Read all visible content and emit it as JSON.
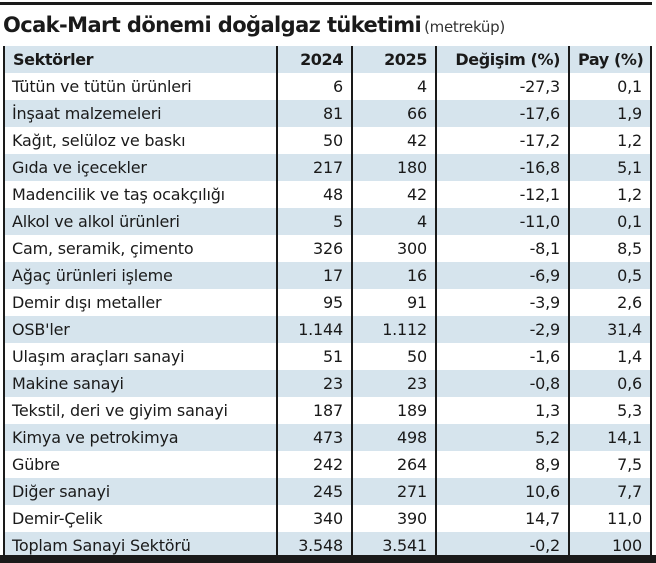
{
  "title": {
    "main": "Ocak-Mart dönemi doğalgaz tüketimi",
    "unit": "(metreküp)"
  },
  "colors": {
    "header_bg": "#d6e4ed",
    "stripe_bg": "#d6e4ed",
    "rule": "#1a1a1a",
    "text": "#1a1a1a"
  },
  "table": {
    "headers": [
      "Sektörler",
      "2024",
      "2025",
      "Değişim (%)",
      "Pay (%)"
    ],
    "rows": [
      [
        "Tütün ve tütün ürünleri",
        "6",
        "4",
        "-27,3",
        "0,1"
      ],
      [
        "İnşaat malzemeleri",
        "81",
        "66",
        "-17,6",
        "1,9"
      ],
      [
        "Kağıt, selüloz ve baskı",
        "50",
        "42",
        "-17,2",
        "1,2"
      ],
      [
        "Gıda ve içecekler",
        "217",
        "180",
        "-16,8",
        "5,1"
      ],
      [
        "Madencilik ve taş ocakçılığı",
        "48",
        "42",
        "-12,1",
        "1,2"
      ],
      [
        "Alkol ve alkol ürünleri",
        "5",
        "4",
        "-11,0",
        "0,1"
      ],
      [
        "Cam, seramik, çimento",
        "326",
        "300",
        "-8,1",
        "8,5"
      ],
      [
        "Ağaç ürünleri işleme",
        "17",
        "16",
        "-6,9",
        "0,5"
      ],
      [
        "Demir dışı metaller",
        "95",
        "91",
        "-3,9",
        "2,6"
      ],
      [
        "OSB'ler",
        "1.144",
        "1.112",
        "-2,9",
        "31,4"
      ],
      [
        "Ulaşım araçları sanayi",
        "51",
        "50",
        "-1,6",
        "1,4"
      ],
      [
        "Makine sanayi",
        "23",
        "23",
        "-0,8",
        "0,6"
      ],
      [
        "Tekstil, deri ve giyim sanayi",
        "187",
        "189",
        "1,3",
        "5,3"
      ],
      [
        "Kimya ve petrokimya",
        "473",
        "498",
        "5,2",
        "14,1"
      ],
      [
        "Gübre",
        "242",
        "264",
        "8,9",
        "7,5"
      ],
      [
        "Diğer sanayi",
        "245",
        "271",
        "10,6",
        "7,7"
      ],
      [
        "Demir-Çelik",
        "340",
        "390",
        "14,7",
        "11,0"
      ],
      [
        "Toplam Sanayi Sektörü",
        "3.548",
        "3.541",
        "-0,2",
        "100"
      ]
    ]
  }
}
